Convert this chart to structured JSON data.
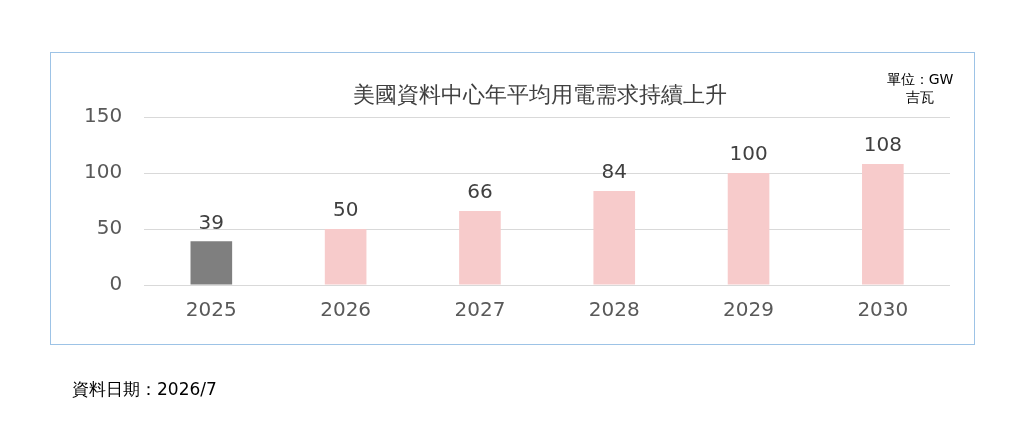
{
  "chart_data": {
    "type": "bar",
    "title": "美國資料中心年平均用電需求持續上升",
    "ylabel": "單位：GW吉瓦",
    "categories": [
      "2025",
      "2026",
      "2027",
      "2028",
      "2029",
      "2030"
    ],
    "values": [
      39,
      50,
      66,
      84,
      100,
      108
    ],
    "colors": [
      "#7f7f7f",
      "#f7cbcb",
      "#f7cbcb",
      "#f7cbcb",
      "#f7cbcb",
      "#f7cbcb"
    ],
    "ylim": [
      0,
      150
    ],
    "yticks": [
      0,
      50,
      100,
      150
    ],
    "grid": "y",
    "legend": false,
    "data_labels": true,
    "annotations": [
      "資料日期：2026/7"
    ]
  }
}
